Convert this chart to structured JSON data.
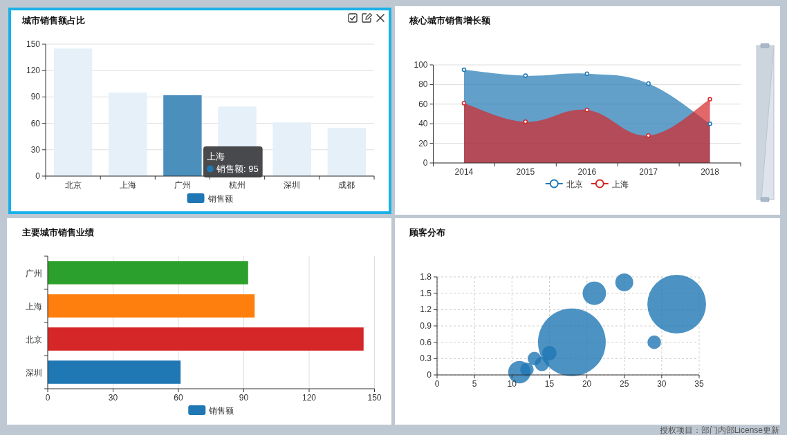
{
  "chart_data": [
    {
      "type": "bar",
      "title": "城市销售额占比",
      "categories": [
        "北京",
        "上海",
        "广州",
        "杭州",
        "深圳",
        "成都"
      ],
      "series": [
        {
          "name": "销售额",
          "color": "#1f77b4",
          "colors": [
            "#e5f0f8",
            "#e5f0f8",
            "#4b8fbd",
            "#e5f0f8",
            "#e5f0f8",
            "#e5f0f8"
          ],
          "values": [
            145,
            95,
            92,
            79,
            61,
            55
          ]
        }
      ],
      "ylim": [
        0,
        150
      ],
      "yticks": [
        0,
        30,
        60,
        90,
        120,
        150
      ],
      "grid": "y",
      "legend": "bottom",
      "annotations": [
        "上海",
        "销售额: 95"
      ]
    },
    {
      "type": "area",
      "title": "核心城市销售增长额",
      "categories": [
        "2014",
        "2015",
        "2016",
        "2017",
        "2018"
      ],
      "series": [
        {
          "name": "北京",
          "color": "#1f77b4",
          "values": [
            95,
            89,
            91,
            81,
            40
          ]
        },
        {
          "name": "上海",
          "color": "#d62728",
          "values": [
            61,
            42,
            54,
            28,
            65
          ]
        }
      ],
      "ylim": [
        0,
        100
      ],
      "yticks": [
        0,
        20,
        40,
        60,
        80,
        100
      ],
      "grid": "y",
      "legend": "bottom",
      "marker": "circle"
    },
    {
      "type": "bar",
      "orientation": "horizontal",
      "title": "主要城市销售业绩",
      "categories": [
        "广州",
        "上海",
        "北京",
        "深圳"
      ],
      "series": [
        {
          "name": "销售额",
          "color": "#1f77b4",
          "colors": [
            "#2ca02c",
            "#ff7f0e",
            "#d62728",
            "#1f77b4"
          ],
          "values": [
            92,
            95,
            145,
            61
          ]
        }
      ],
      "xlim": [
        0,
        150
      ],
      "xticks": [
        0,
        30,
        60,
        90,
        120,
        150
      ],
      "grid": "x",
      "legend": "bottom"
    },
    {
      "type": "bubble",
      "title": "顾客分布",
      "x": [
        11,
        12,
        13,
        14,
        15,
        18,
        21,
        25,
        29,
        32
      ],
      "values": [
        0.05,
        0.1,
        0.3,
        0.2,
        0.4,
        0.6,
        1.5,
        1.7,
        0.6,
        1.3
      ],
      "sizes": [
        0.11,
        0.04,
        0.04,
        0.045,
        0.045,
        1,
        0.12,
        0.07,
        0.04,
        0.75
      ],
      "color": "#1f77b4",
      "xlim": [
        0,
        35
      ],
      "xticks": [
        0,
        5,
        10,
        15,
        20,
        25,
        30,
        35
      ],
      "ylim": [
        0,
        1.8
      ],
      "yticks": [
        0,
        0.3,
        0.6,
        0.9,
        1.2,
        1.5,
        1.8
      ],
      "grid": true,
      "annotations": [
        "授权项目：部门内部License更新"
      ]
    }
  ]
}
